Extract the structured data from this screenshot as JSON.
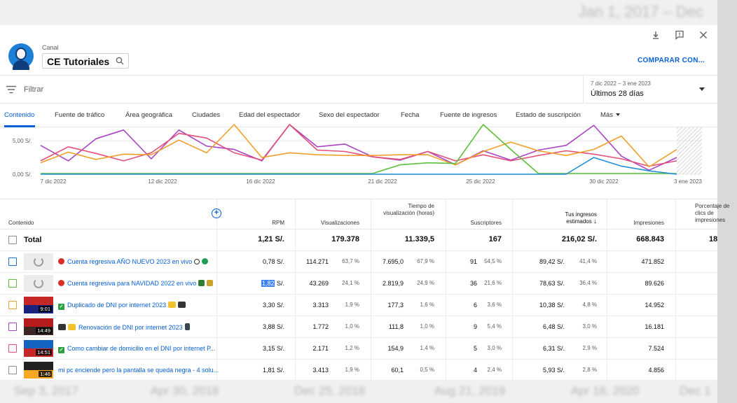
{
  "background": {
    "top_date": "Jan 1, 2017 – Dec",
    "bottom_dates": [
      "Sep 3, 2017",
      "Apr 30, 2018",
      "Dec 25, 2018",
      "Aug 21, 2019",
      "Apr 16, 2020",
      "Dec 1"
    ]
  },
  "header": {
    "canal_label": "Canal",
    "channel_name": "CE Tutoriales",
    "compare_label": "COMPARAR CON...",
    "icons": [
      "download-icon",
      "feedback-icon",
      "close-icon"
    ]
  },
  "filter": {
    "placeholder": "Filtrar",
    "date_range": "7 dic 2022 – 3 ene 2023",
    "period": "Últimos 28 días"
  },
  "tabs": [
    "Contenido",
    "Fuente de tráfico",
    "Área geográfica",
    "Ciudades",
    "Edad del espectador",
    "Sexo del espectador",
    "Fecha",
    "Fuente de ingresos",
    "Estado de suscripción",
    "Más"
  ],
  "chart_data": {
    "type": "line",
    "y_tick_labels": [
      "5,00 S/.",
      "0,00 S/."
    ],
    "x_tick_labels": [
      "7 dic 2022",
      "12 dic 2022",
      "16 dic 2022",
      "21 dic 2022",
      "25 dic 2022",
      "30 dic 2022",
      "3 ene 2023"
    ],
    "ylim": [
      0,
      7
    ],
    "grid": true,
    "series": [
      {
        "color": "#a845c4",
        "values": [
          4.3,
          2.0,
          5.3,
          6.6,
          2.3,
          6.6,
          4.2,
          3.7,
          2.0,
          7.6,
          4.1,
          4.5,
          2.6,
          2.1,
          3.4,
          1.4,
          3.5,
          2.1,
          3.6,
          4.3,
          7.3,
          2.7,
          0.6,
          2.5
        ]
      },
      {
        "color": "#e2507a",
        "values": [
          2.0,
          4.1,
          3.1,
          2.0,
          3.2,
          6.1,
          5.4,
          3.2,
          2.1,
          7.5,
          3.6,
          3.4,
          2.6,
          2.2,
          3.4,
          2.0,
          2.9,
          2.0,
          2.8,
          3.5,
          3.0,
          2.3,
          1.2,
          2.0
        ]
      },
      {
        "color": "#f0a02a",
        "values": [
          1.7,
          3.3,
          2.2,
          3.0,
          2.9,
          5.1,
          3.2,
          7.6,
          2.5,
          3.2,
          2.9,
          2.8,
          2.8,
          2.9,
          2.9,
          1.4,
          3.4,
          4.8,
          3.5,
          2.8,
          3.7,
          5.7,
          1.1,
          3.7
        ]
      },
      {
        "color": "#5cbf3a",
        "values": [
          0.1,
          0.1,
          0.1,
          0.1,
          0.1,
          0.1,
          0.1,
          0.1,
          0.1,
          0.1,
          0.1,
          0.1,
          0.1,
          1.4,
          1.7,
          1.6,
          7.8,
          3.7,
          0.1,
          0.1,
          0.1,
          0.1,
          0.1,
          0.1
        ]
      },
      {
        "color": "#1e90d8",
        "values": [
          0.0,
          0.0,
          0.0,
          0.0,
          0.0,
          0.0,
          0.0,
          0.0,
          0.0,
          0.0,
          0.0,
          0.0,
          0.0,
          0.0,
          0.0,
          0.0,
          0.0,
          0.0,
          0.0,
          0.0,
          2.5,
          1.2,
          0.5,
          0.0
        ]
      }
    ]
  },
  "table": {
    "add_column_icon": "add-circle-icon",
    "headers": {
      "content": "Contenido",
      "rpm": "RPM",
      "views": "Visualizaciones",
      "watch_time": "Tiempo de visualización (horas)",
      "subscribers": "Suscriptores",
      "revenue": "Tus ingresos estimados",
      "impressions": "Impresiones",
      "ctr": "Porcentaje de clics de impresiones"
    },
    "sort_indicator": "↓",
    "total": {
      "label": "Total",
      "rpm": "1,21 S/.",
      "views": "179.378",
      "watch_time": "11.339,5",
      "subscribers": "167",
      "revenue": "216,02 S/.",
      "impressions": "668.843",
      "ctr": "18"
    },
    "rows": [
      {
        "title": "Cuenta regresiva AÑO NUEVO 2023 en vivo",
        "checkbox_color": "#1e6fd0",
        "duration": "",
        "rpm": "0,78 S/.",
        "views": "114.271",
        "views_pct": "63,7 %",
        "watch": "7.695,0",
        "watch_pct": "67,9 %",
        "subs": "91",
        "subs_pct": "54,5 %",
        "revenue": "89,42 S/.",
        "revenue_pct": "41,4 %",
        "impressions": "471.852"
      },
      {
        "title": "Cuenta regresiva para NAVIDAD 2022 en vivo",
        "checkbox_color": "#5cbf3a",
        "duration": "",
        "rpm_highlight": "1,82",
        "rpm_suffix": " S/.",
        "views": "43.269",
        "views_pct": "24,1 %",
        "watch": "2.819,9",
        "watch_pct": "24,9 %",
        "subs": "36",
        "subs_pct": "21,6 %",
        "revenue": "78,63 S/.",
        "revenue_pct": "36,4 %",
        "impressions": "89.626"
      },
      {
        "title": "Duplicado de DNI por internet 2023",
        "checkbox_color": "#f0a02a",
        "duration": "9:01",
        "rpm": "3,30 S/.",
        "views": "3.313",
        "views_pct": "1,9 %",
        "watch": "177,3",
        "watch_pct": "1,6 %",
        "subs": "6",
        "subs_pct": "3,6 %",
        "revenue": "10,38 S/.",
        "revenue_pct": "4,8 %",
        "impressions": "14.952"
      },
      {
        "title": "Renovación de DNI por internet 2023",
        "checkbox_color": "#a845c4",
        "duration": "14:49",
        "rpm": "3,88 S/.",
        "views": "1.772",
        "views_pct": "1,0 %",
        "watch": "111,8",
        "watch_pct": "1,0 %",
        "subs": "9",
        "subs_pct": "5,4 %",
        "revenue": "6,48 S/.",
        "revenue_pct": "3,0 %",
        "impressions": "16.181"
      },
      {
        "title": "Como cambiar de domicilio en el DNI por internet P...",
        "checkbox_color": "#e2507a",
        "duration": "14:51",
        "rpm": "3,15 S/.",
        "views": "2.171",
        "views_pct": "1,2 %",
        "watch": "154,9",
        "watch_pct": "1,4 %",
        "subs": "5",
        "subs_pct": "3,0 %",
        "revenue": "6,31 S/.",
        "revenue_pct": "2,9 %",
        "impressions": "7.524"
      },
      {
        "title": "mi pc enciende pero la pantalla se queda negra - 4 solu...",
        "checkbox_color": "#909090",
        "duration": "1:46",
        "rpm": "1,81 S/.",
        "views": "3.413",
        "views_pct": "1,9 %",
        "watch": "60,1",
        "watch_pct": "0,5 %",
        "subs": "4",
        "subs_pct": "2,4 %",
        "revenue": "5,93 S/.",
        "revenue_pct": "2,8 %",
        "impressions": "4.856"
      }
    ]
  }
}
